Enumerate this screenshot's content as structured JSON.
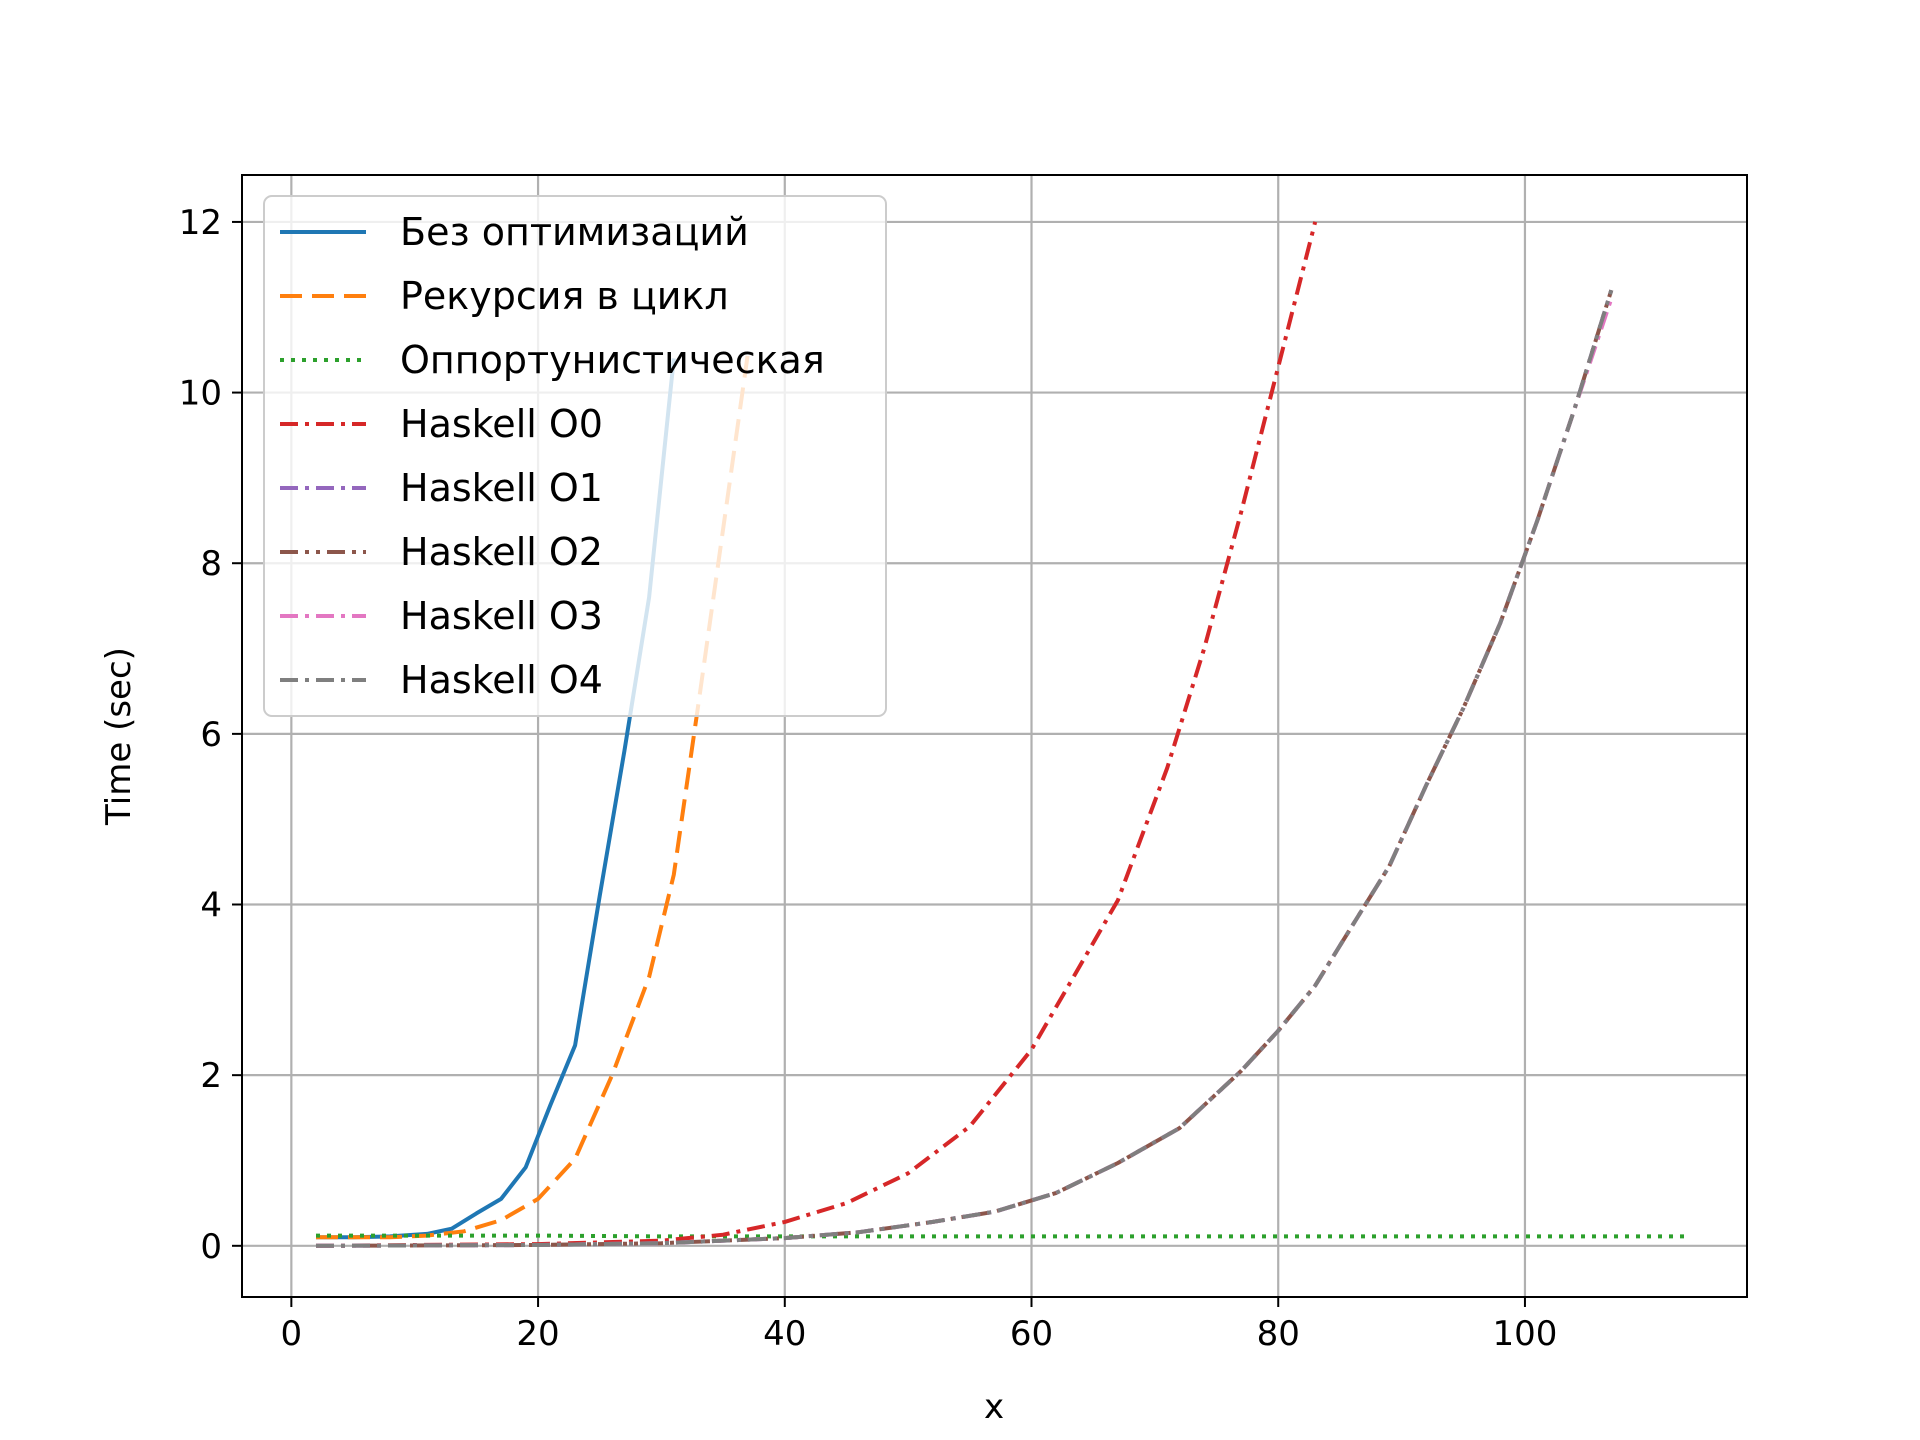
{
  "chart_data": {
    "type": "line",
    "title": "",
    "xlabel": "x",
    "ylabel": "Time (sec)",
    "xlim": [
      -4,
      118
    ],
    "ylim": [
      -0.6,
      12.55
    ],
    "xticks": [
      0,
      20,
      40,
      60,
      80,
      100
    ],
    "yticks": [
      0,
      2,
      4,
      6,
      8,
      10,
      12
    ],
    "xtick_labels": [
      "0",
      "20",
      "40",
      "60",
      "80",
      "100"
    ],
    "ytick_labels": [
      "0",
      "2",
      "4",
      "6",
      "8",
      "10",
      "12"
    ],
    "grid": true,
    "legend_position": "top-left",
    "series": [
      {
        "name": "Без оптимизаций",
        "color": "#1f77b4",
        "dash": "solid",
        "x": [
          2,
          5,
          8,
          11,
          13,
          15,
          17,
          19,
          21,
          23,
          25,
          27,
          29,
          31
        ],
        "y": [
          0.1,
          0.1,
          0.11,
          0.14,
          0.2,
          0.38,
          0.55,
          0.92,
          1.65,
          2.35,
          4.1,
          5.8,
          7.6,
          10.4
        ]
      },
      {
        "name": "Рекурсия в цикл",
        "color": "#ff7f0e",
        "dash": "dashed",
        "x": [
          2,
          5,
          8,
          11,
          14,
          17,
          20,
          23,
          26,
          29,
          31,
          33,
          35,
          37
        ],
        "y": [
          0.1,
          0.1,
          0.1,
          0.12,
          0.17,
          0.3,
          0.55,
          1.02,
          2.0,
          3.15,
          4.35,
          6.35,
          8.4,
          10.45
        ]
      },
      {
        "name": "Оппортунистическая",
        "color": "#2ca02c",
        "dash": "dotted",
        "x": [
          2,
          10,
          20,
          30,
          40,
          50,
          60,
          70,
          80,
          90,
          100,
          113
        ],
        "y": [
          0.12,
          0.12,
          0.12,
          0.11,
          0.11,
          0.11,
          0.11,
          0.11,
          0.11,
          0.11,
          0.11,
          0.11
        ]
      },
      {
        "name": "Haskell O0",
        "color": "#d62728",
        "dash": "dashdot",
        "x": [
          2,
          10,
          20,
          30,
          35,
          40,
          45,
          50,
          55,
          60,
          63,
          67,
          71,
          74,
          77,
          80,
          83
        ],
        "y": [
          0.0,
          0.01,
          0.02,
          0.06,
          0.13,
          0.28,
          0.5,
          0.85,
          1.4,
          2.3,
          3.05,
          4.05,
          5.6,
          7.0,
          8.6,
          10.3,
          12.0
        ]
      },
      {
        "name": "Haskell O1",
        "color": "#9467bd",
        "dash": "dashdot",
        "x": [
          2,
          20,
          30,
          40,
          46,
          52,
          57,
          62,
          67,
          72,
          77,
          80,
          83,
          86,
          89,
          92,
          95,
          98,
          101,
          104,
          107
        ],
        "y": [
          0.0,
          0.01,
          0.03,
          0.09,
          0.16,
          0.28,
          0.4,
          0.62,
          0.97,
          1.38,
          2.05,
          2.52,
          3.05,
          3.75,
          4.45,
          5.4,
          6.3,
          7.3,
          8.5,
          9.8,
          11.2
        ]
      },
      {
        "name": "Haskell O2",
        "color": "#8c564b",
        "dash": "dashdotdot",
        "x": [
          2,
          20,
          30,
          40,
          46,
          52,
          57,
          62,
          67,
          72,
          77,
          80,
          83,
          86,
          89,
          92,
          95,
          98,
          101,
          104,
          107
        ],
        "y": [
          0.0,
          0.01,
          0.03,
          0.09,
          0.16,
          0.28,
          0.4,
          0.62,
          0.97,
          1.38,
          2.05,
          2.52,
          3.05,
          3.75,
          4.45,
          5.4,
          6.3,
          7.3,
          8.5,
          9.8,
          11.2
        ]
      },
      {
        "name": "Haskell O3",
        "color": "#e377c2",
        "dash": "dashdot",
        "x": [
          2,
          20,
          30,
          40,
          46,
          52,
          57,
          62,
          67,
          72,
          77,
          80,
          83,
          86,
          89,
          92,
          95,
          98,
          101,
          104,
          107
        ],
        "y": [
          0.0,
          0.01,
          0.03,
          0.09,
          0.16,
          0.28,
          0.4,
          0.62,
          0.97,
          1.38,
          2.05,
          2.52,
          3.05,
          3.75,
          4.45,
          5.4,
          6.3,
          7.3,
          8.5,
          9.8,
          11.1
        ]
      },
      {
        "name": "Haskell O4",
        "color": "#7f7f7f",
        "dash": "dashdot",
        "x": [
          2,
          20,
          30,
          40,
          46,
          52,
          57,
          62,
          67,
          72,
          77,
          80,
          83,
          86,
          89,
          92,
          95,
          98,
          101,
          104,
          107
        ],
        "y": [
          0.0,
          0.01,
          0.03,
          0.09,
          0.16,
          0.28,
          0.4,
          0.62,
          0.97,
          1.38,
          2.05,
          2.52,
          3.05,
          3.75,
          4.45,
          5.4,
          6.3,
          7.3,
          8.5,
          9.8,
          11.2
        ]
      }
    ]
  }
}
